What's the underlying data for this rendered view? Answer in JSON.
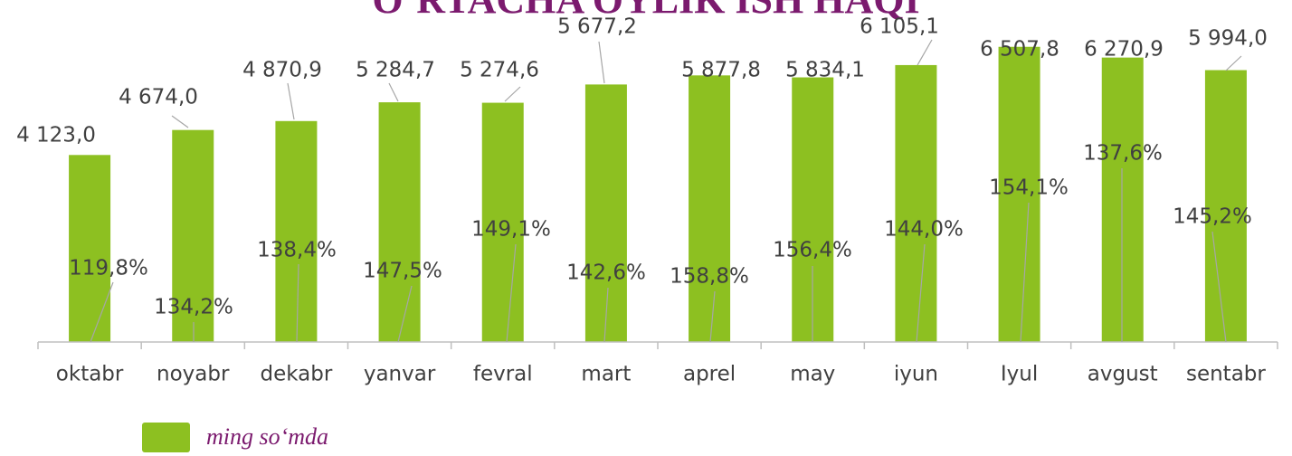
{
  "chart_data": {
    "type": "bar",
    "title": "O‘RTACHA OYLIK ISH HAQI",
    "categories": [
      "oktabr",
      "noyabr",
      "dekabr",
      "yanvar",
      "fevral",
      "mart",
      "aprel",
      "may",
      "iyun",
      "Iyul",
      "avgust",
      "sentabr"
    ],
    "series": [
      {
        "name": "ming so‘mda",
        "color": "#8dc021",
        "values": [
          4123.0,
          4674.0,
          4870.9,
          5284.7,
          5274.6,
          5677.2,
          5877.8,
          5834.1,
          6105.1,
          6507.8,
          6270.9,
          5994.0
        ],
        "value_labels": [
          "4 123,0",
          "4 674,0",
          "4 870,9",
          "5 284,7",
          "5 274,6",
          "5 677,2",
          "5 877,8",
          "5 834,1",
          "6 105,1",
          "6 507,8",
          "6 270,9",
          "5 994,0"
        ]
      }
    ],
    "growth": {
      "values": [
        119.8,
        134.2,
        138.4,
        147.5,
        149.1,
        142.6,
        158.8,
        156.4,
        144.0,
        154.1,
        137.6,
        145.2
      ],
      "value_labels": [
        "119,8%",
        "134,2%",
        "138,4%",
        "147,5%",
        "149,1%",
        "142,6%",
        "158,8%",
        "156,4%",
        "144,0%",
        "154,1%",
        "137,6%",
        "145,2%"
      ]
    },
    "ylim": [
      0,
      7500
    ]
  }
}
